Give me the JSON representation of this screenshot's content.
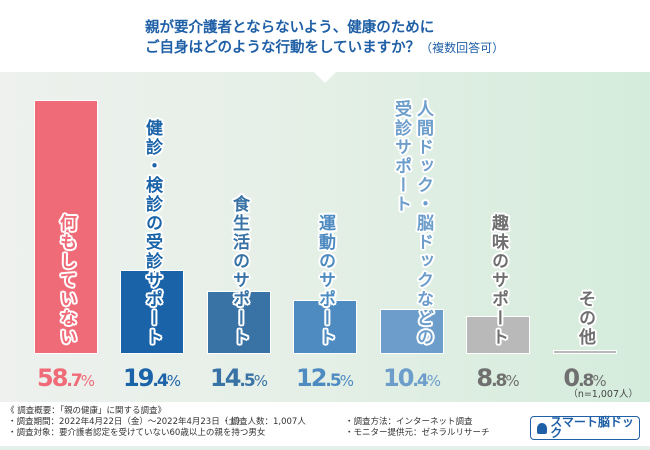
{
  "title": {
    "line1": "親が要介護者とならないよう、健康のために",
    "line2": "ご自身はどのような行動をしていますか？",
    "note": "（複数回答可）"
  },
  "chart_data": {
    "type": "bar",
    "title": "親が要介護者とならないよう、健康のためにご自身はどのような行動をしていますか？（複数回答可）",
    "unit": "%",
    "ylim": [
      0,
      60
    ],
    "categories": [
      {
        "lines": [
          "何もしていない"
        ],
        "value": 58.7,
        "int": "58",
        "dec": ".7",
        "color": "#f06b78",
        "text_color": "#f06b78"
      },
      {
        "lines": [
          "健診・検診の受診サポート"
        ],
        "value": 19.4,
        "int": "19",
        "dec": ".4",
        "color": "#1a63a8",
        "text_color": "#1a63a8"
      },
      {
        "lines": [
          "食生活のサポート"
        ],
        "value": 14.5,
        "int": "14",
        "dec": ".5",
        "color": "#3973a6",
        "text_color": "#3973a6"
      },
      {
        "lines": [
          "運動のサポート"
        ],
        "value": 12.5,
        "int": "12",
        "dec": ".5",
        "color": "#4e8bc0",
        "text_color": "#4e8bc0"
      },
      {
        "lines": [
          "人間ドック・脳ドックなどの",
          "受診サポート"
        ],
        "value": 10.4,
        "int": "10",
        "dec": ".4",
        "color": "#6c9dcb",
        "text_color": "#6c9dcb"
      },
      {
        "lines": [
          "趣味のサポート"
        ],
        "value": 8.8,
        "int": "8",
        "dec": ".8",
        "color": "#b9b9b9",
        "text_color": "#707070"
      },
      {
        "lines": [
          "その他"
        ],
        "value": 0.8,
        "int": "0",
        "dec": ".8",
        "color": "#b9b9b9",
        "text_color": "#707070"
      }
    ],
    "n_label": "（n=1,007人）"
  },
  "footer": {
    "heading": "《 調査概要：「親の健康」に関する調査》",
    "period": "・調査期間：2022年4月22日（金）～2022年4月23日（土）",
    "count": "・調査人数：1,007人",
    "method": "・調査方法：インターネット調査",
    "target": "・調査対象：要介護者認定を受けていない60歳以上の親を持つ男女",
    "provider": "・モニター提供元：ゼネラルリサーチ",
    "logo": "スマート脳ドック"
  }
}
